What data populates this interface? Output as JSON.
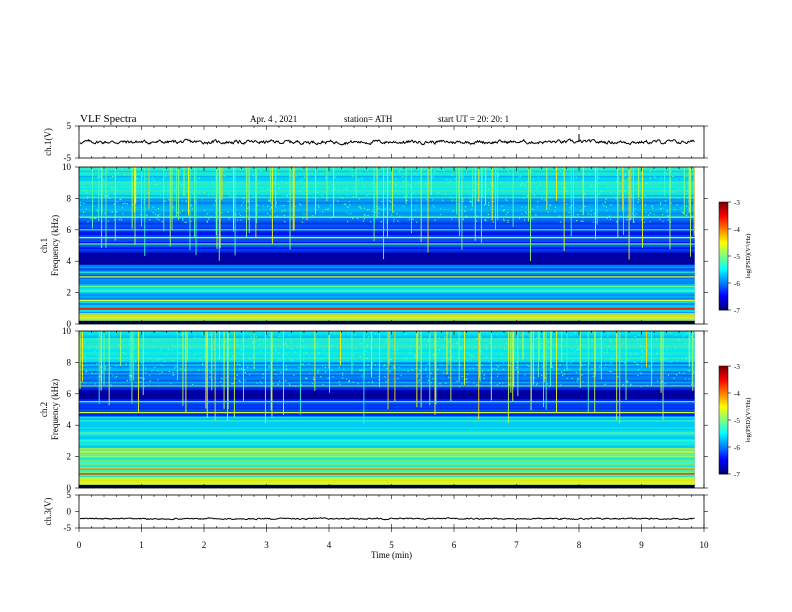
{
  "header": {
    "title": "VLF  Spectra",
    "date": "Apr. 4  , 2021",
    "station": "station= ATH",
    "start": "start  UT  =    20: 20: 1"
  },
  "chart_data": [
    {
      "type": "line",
      "panel": "ch1-waveform",
      "ylabel": "ch.1(V)",
      "yticks": [
        5,
        -5
      ],
      "ylim": [
        -5,
        5
      ],
      "xlim": [
        0,
        10
      ],
      "x_end": 9.85,
      "series": [
        {
          "mean": 0.0,
          "amplitude": 0.8,
          "spikes": [
            {
              "x": 8.0,
              "y": 2.5
            }
          ]
        }
      ],
      "color": "#000000"
    },
    {
      "type": "heatmap",
      "panel": "ch1-spectrogram",
      "ylabel": "Frequency  (kHz)",
      "channel_label": "ch.1",
      "yticks": [
        0,
        2,
        4,
        6,
        8,
        10
      ],
      "ylim": [
        0,
        10
      ],
      "xlim": [
        0,
        10
      ],
      "x_end": 9.85,
      "colorbar": {
        "label": "log(PSD)(V²/Hz)",
        "ticks": [
          -3,
          -4,
          -5,
          -6,
          -7
        ],
        "range": [
          -7,
          -3
        ]
      },
      "notable_lines_khz": [
        0.5,
        1.0,
        1.5,
        2.1,
        2.4,
        3.0,
        3.3,
        5.1,
        5.5,
        6.0,
        6.8
      ],
      "dark_band_khz": [
        3.8,
        4.6
      ]
    },
    {
      "type": "heatmap",
      "panel": "ch2-spectrogram",
      "ylabel": "Frequency  (kHz)",
      "channel_label": "ch.2",
      "yticks": [
        0,
        2,
        4,
        6,
        8,
        10
      ],
      "ylim": [
        0,
        10
      ],
      "xlim": [
        0,
        10
      ],
      "x_end": 9.85,
      "colorbar": {
        "label": "log(PSD)(V²/Hz)",
        "ticks": [
          -3,
          -4,
          -5,
          -6,
          -7
        ],
        "range": [
          -7,
          -3
        ]
      },
      "notable_lines_khz": [
        0.5,
        0.9,
        1.2,
        1.6,
        2.0,
        2.3,
        3.0,
        3.5,
        4.8,
        5.5,
        6.5
      ],
      "dark_band_khz": [
        5.7,
        6.2
      ]
    },
    {
      "type": "line",
      "panel": "ch3-waveform",
      "ylabel": "ch.3(V)",
      "yticks": [
        5,
        0,
        -5
      ],
      "ylim": [
        -5,
        5
      ],
      "xlim": [
        0,
        10
      ],
      "x_end": 9.85,
      "series": [
        {
          "mean": -2.2,
          "amplitude": 0.3
        }
      ],
      "xlabel": "Time  (min)",
      "xticks": [
        0,
        1,
        2,
        3,
        4,
        5,
        6,
        7,
        8,
        9,
        10
      ],
      "color": "#000000"
    }
  ]
}
